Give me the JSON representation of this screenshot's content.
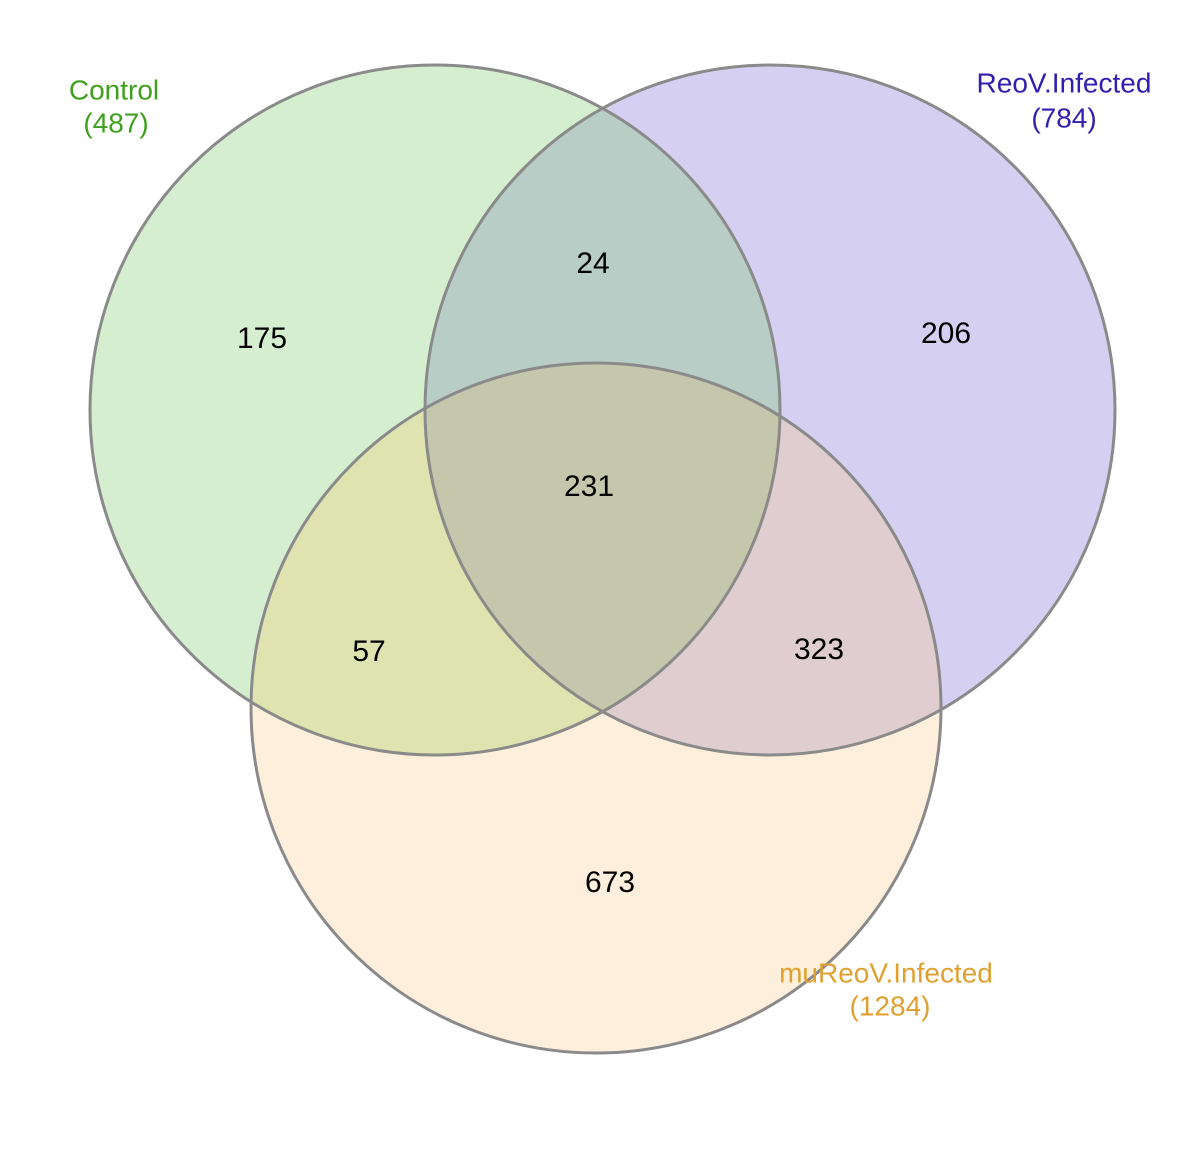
{
  "sets": [
    {
      "key": "control",
      "name": "Control",
      "total_label": "(487)",
      "total": 487,
      "fill_color": "#d5eed0",
      "label_color": "#3fa01e"
    },
    {
      "key": "reov",
      "name": "ReoV.Infected",
      "total_label": "(784)",
      "total": 784,
      "fill_color": "#d5d0f2",
      "label_color": "#3020b0"
    },
    {
      "key": "mureov",
      "name": "muReoV.Infected",
      "total_label": "(1284)",
      "total": 1284,
      "fill_color": "#fdefdb",
      "label_color": "#e0a030"
    }
  ],
  "regions": {
    "control_only": "175",
    "reov_only": "206",
    "mureov_only": "673",
    "control_reov": "24",
    "control_mureov": "57",
    "reov_mureov": "323",
    "all_three": "231"
  },
  "overlap_colors": {
    "control_reov": "#b8cdc6",
    "control_mureov": "#dfe3b0",
    "reov_mureov": "#e0cdd0",
    "all_three": "#c4c7ab"
  },
  "outline_color": "#8a8a8a"
}
